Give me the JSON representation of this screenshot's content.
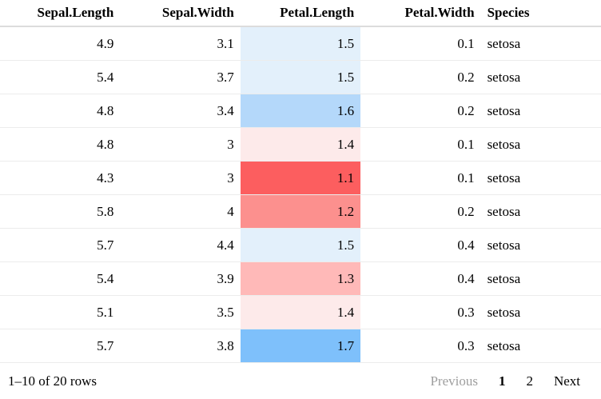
{
  "table": {
    "columns": [
      {
        "label": "Sepal.Length",
        "key": "sepal_length",
        "align": "right"
      },
      {
        "label": "Sepal.Width",
        "key": "sepal_width",
        "align": "right"
      },
      {
        "label": "Petal.Length",
        "key": "petal_length",
        "align": "right"
      },
      {
        "label": "Petal.Width",
        "key": "petal_width",
        "align": "right"
      },
      {
        "label": "Species",
        "key": "species",
        "align": "left"
      }
    ],
    "rows": [
      {
        "sepal_length": "4.9",
        "sepal_width": "3.1",
        "petal_length": "1.5",
        "petal_width": "0.1",
        "species": "setosa",
        "petal_length_bg": "#e3f0fb"
      },
      {
        "sepal_length": "5.4",
        "sepal_width": "3.7",
        "petal_length": "1.5",
        "petal_width": "0.2",
        "species": "setosa",
        "petal_length_bg": "#e3f0fb"
      },
      {
        "sepal_length": "4.8",
        "sepal_width": "3.4",
        "petal_length": "1.6",
        "petal_width": "0.2",
        "species": "setosa",
        "petal_length_bg": "#b4d8fa"
      },
      {
        "sepal_length": "4.8",
        "sepal_width": "3",
        "petal_length": "1.4",
        "petal_width": "0.1",
        "species": "setosa",
        "petal_length_bg": "#fdeaea"
      },
      {
        "sepal_length": "4.3",
        "sepal_width": "3",
        "petal_length": "1.1",
        "petal_width": "0.1",
        "species": "setosa",
        "petal_length_bg": "#fc5e5f"
      },
      {
        "sepal_length": "5.8",
        "sepal_width": "4",
        "petal_length": "1.2",
        "petal_width": "0.2",
        "species": "setosa",
        "petal_length_bg": "#fc908e"
      },
      {
        "sepal_length": "5.7",
        "sepal_width": "4.4",
        "petal_length": "1.5",
        "petal_width": "0.4",
        "species": "setosa",
        "petal_length_bg": "#e3f0fb"
      },
      {
        "sepal_length": "5.4",
        "sepal_width": "3.9",
        "petal_length": "1.3",
        "petal_width": "0.4",
        "species": "setosa",
        "petal_length_bg": "#ffb9b8"
      },
      {
        "sepal_length": "5.1",
        "sepal_width": "3.5",
        "petal_length": "1.4",
        "petal_width": "0.3",
        "species": "setosa",
        "petal_length_bg": "#fdeaea"
      },
      {
        "sepal_length": "5.7",
        "sepal_width": "3.8",
        "petal_length": "1.7",
        "petal_width": "0.3",
        "species": "setosa",
        "petal_length_bg": "#7ec0fb"
      }
    ]
  },
  "footer": {
    "page_info": "1–10 of 20 rows",
    "previous_label": "Previous",
    "next_label": "Next",
    "pages": [
      "1",
      "2"
    ],
    "current_page": "1"
  },
  "colors": {
    "header_border": "#dcdcdc",
    "row_border": "#ececec",
    "disabled_text": "#9e9e9e",
    "scale_low_red": "#fc5e5f",
    "scale_high_blue": "#7ec0fb"
  }
}
